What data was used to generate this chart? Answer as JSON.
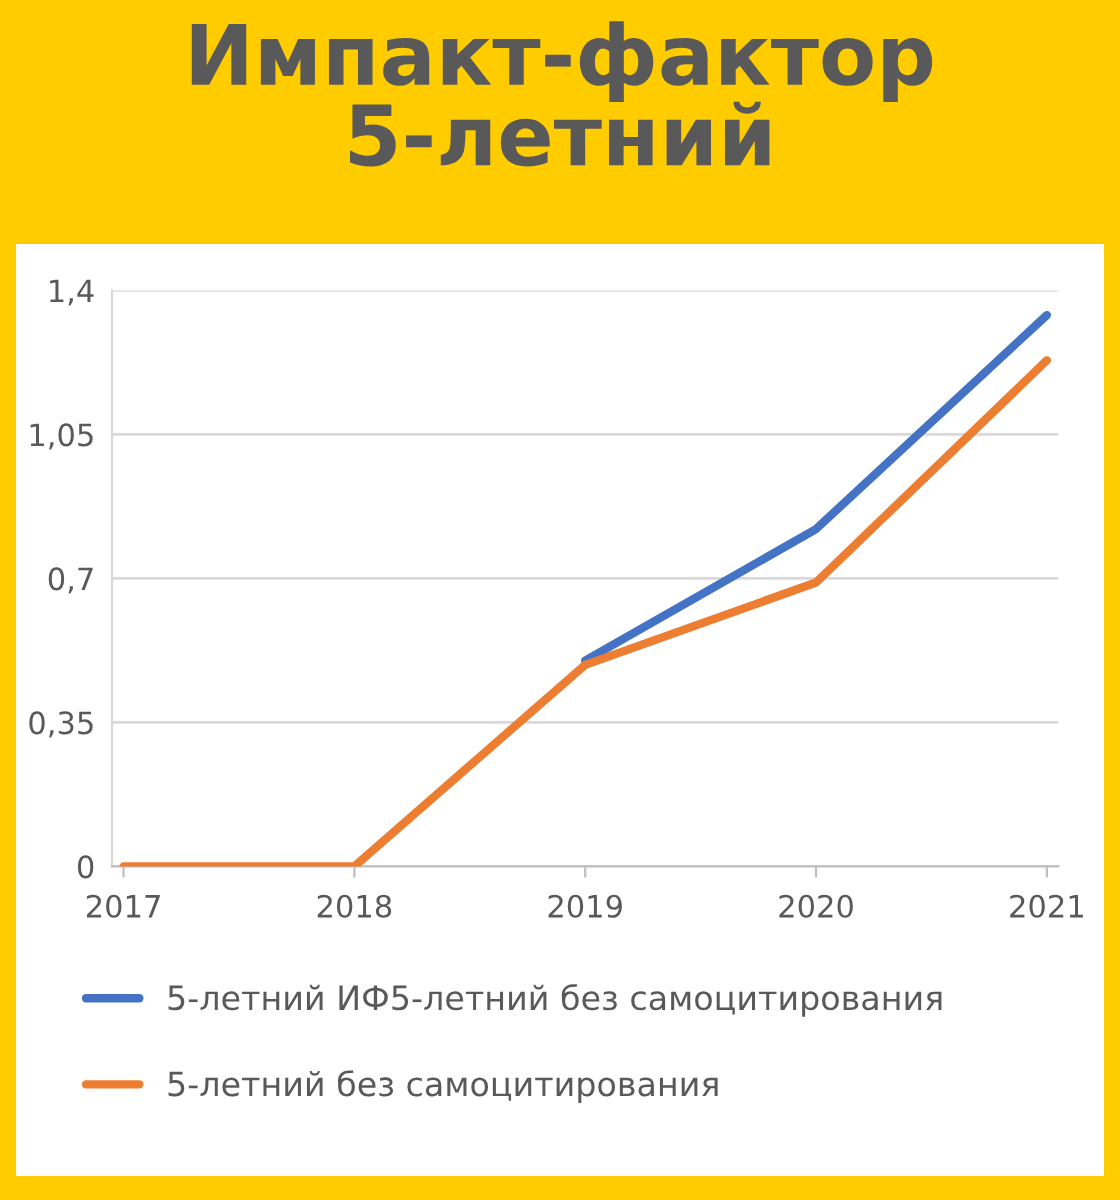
{
  "chart_data": {
    "type": "line",
    "title": "Импакт-фактор\n5-летний",
    "categories": [
      "2017",
      "2018",
      "2019",
      "2020",
      "2021"
    ],
    "series": [
      {
        "name": "5-летний ИФ5-летний без самоцитирования",
        "color": "#4472c4",
        "values": [
          null,
          null,
          0.5,
          0.82,
          1.34
        ]
      },
      {
        "name": "5-летний без самоцитирования",
        "color": "#ed7d31",
        "values": [
          0,
          0,
          0.49,
          0.69,
          1.23
        ]
      }
    ],
    "ylim": [
      0,
      1.4
    ],
    "yticks": [
      0,
      {
        "value": 0.35,
        "label": "0,35"
      },
      {
        "value": 0.7,
        "label": "0,7"
      },
      {
        "value": 1.05,
        "label": "1,05"
      },
      {
        "value": 1.4,
        "label": "1,4"
      }
    ],
    "grid": "y",
    "legend": "bottom",
    "marker": "none",
    "line_style": "solid"
  }
}
